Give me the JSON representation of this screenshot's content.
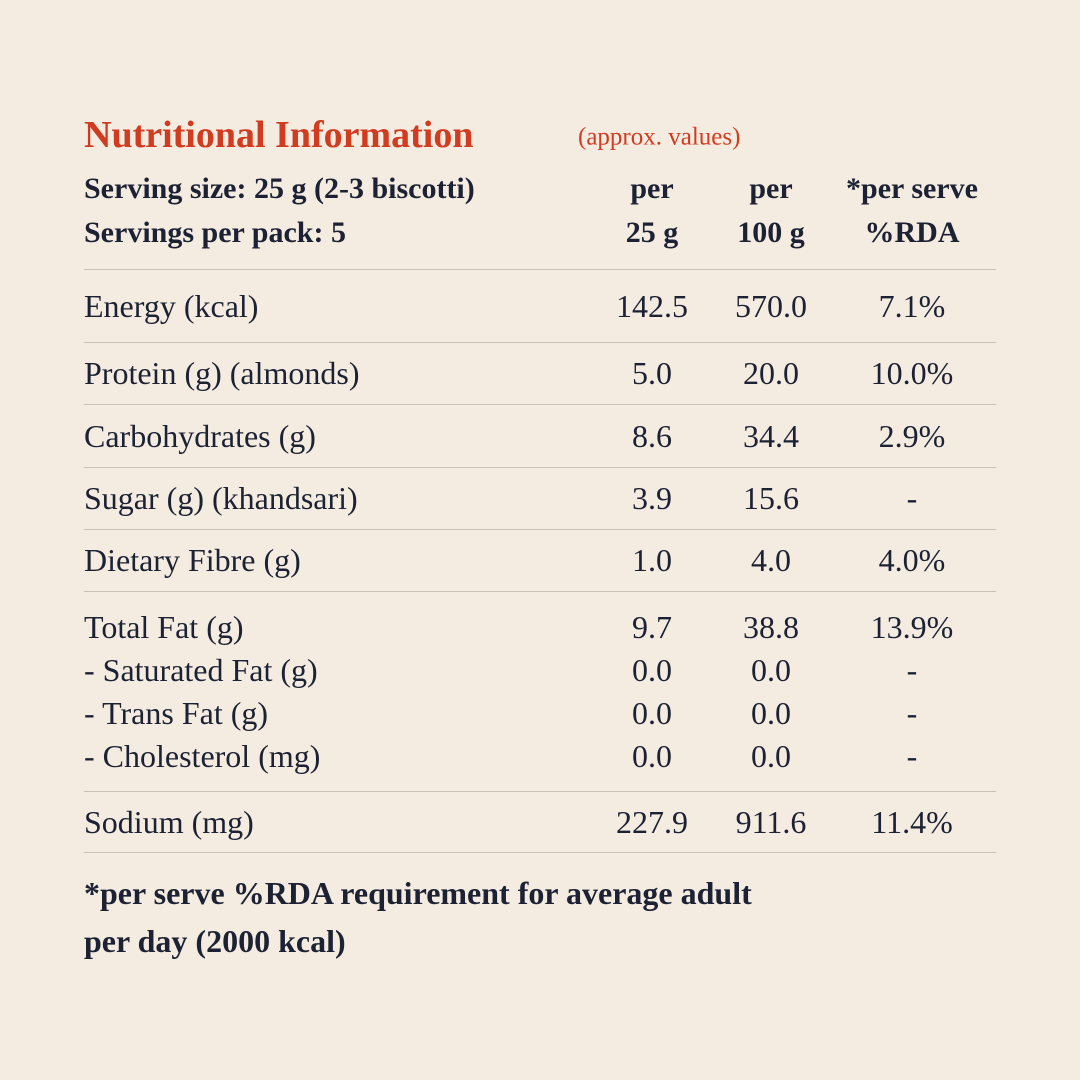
{
  "header": {
    "title": "Nutritional Information",
    "subtitle": "(approx. values)",
    "serving_lines": [
      "Serving size: 25 g (2-3 biscotti)",
      "Servings per pack: 5"
    ],
    "columns": [
      [
        "per",
        "25 g"
      ],
      [
        "per",
        "100 g"
      ],
      [
        "*per serve",
        "%RDA"
      ]
    ]
  },
  "table": {
    "groups": [
      [
        [
          "Energy (kcal)",
          "142.5",
          "570.0",
          "7.1%"
        ]
      ],
      [
        [
          "Protein (g) (almonds)",
          "5.0",
          "20.0",
          "10.0%"
        ]
      ],
      [
        [
          "Carbohydrates (g)",
          "8.6",
          "34.4",
          "2.9%"
        ]
      ],
      [
        [
          "Sugar (g) (khandsari)",
          "3.9",
          "15.6",
          "-"
        ]
      ],
      [
        [
          "Dietary Fibre (g)",
          "1.0",
          "4.0",
          "4.0%"
        ]
      ],
      [
        [
          "Total Fat (g)",
          "9.7",
          "38.8",
          "13.9%"
        ],
        [
          "- Saturated Fat (g)",
          "0.0",
          "0.0",
          "-"
        ],
        [
          "- Trans Fat (g)",
          "0.0",
          "0.0",
          "-"
        ],
        [
          "- Cholesterol (mg)",
          "0.0",
          "0.0",
          "-"
        ]
      ],
      [
        [
          "Sodium (mg)",
          "227.9",
          "911.6",
          "11.4%"
        ]
      ]
    ]
  },
  "footnote": [
    "*per serve %RDA requirement for average adult",
    "per day (2000 kcal)"
  ]
}
